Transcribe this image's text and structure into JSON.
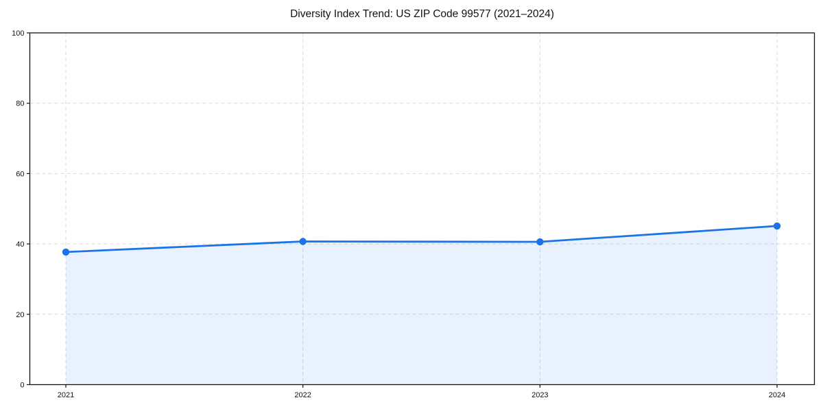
{
  "chart_data": {
    "type": "line",
    "title": "Diversity Index Trend: US ZIP Code 99577 (2021–2024)",
    "categories": [
      "2021",
      "2022",
      "2023",
      "2024"
    ],
    "series": [
      {
        "name": "Diversity Index",
        "values": [
          37.7,
          40.7,
          40.6,
          45.1
        ]
      }
    ],
    "xlabel": "",
    "ylabel": "",
    "ylim": [
      0,
      100
    ],
    "yticks": [
      0,
      20,
      40,
      60,
      80,
      100
    ],
    "grid": true,
    "grid_style": "dashed",
    "legend": "none",
    "area_fill": true,
    "marker": "circle",
    "colors": {
      "line": "#1a73e8",
      "fill": "#1a73e8",
      "fill_opacity": 0.1,
      "grid": "#d9d9d9",
      "spine": "#111111",
      "text": "#111111",
      "background": "#ffffff"
    }
  }
}
